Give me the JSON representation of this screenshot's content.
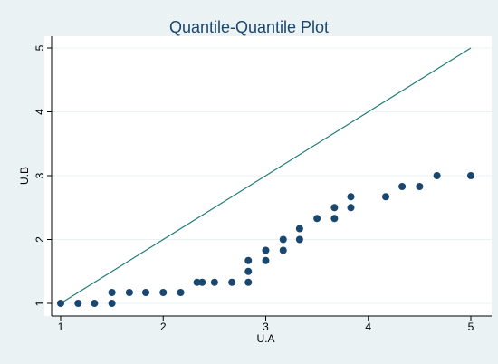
{
  "chart_data": {
    "type": "scatter",
    "title": "Quantile-Quantile Plot",
    "xlabel": "U.A",
    "ylabel": "U.B",
    "xlim": [
      1,
      5
    ],
    "ylim": [
      1,
      5
    ],
    "xticks": [
      "1",
      "2",
      "3",
      "4",
      "5"
    ],
    "yticks": [
      "1",
      "2",
      "3",
      "4",
      "5"
    ],
    "grid": "horizontal",
    "reference_line": {
      "from": [
        1,
        1
      ],
      "to": [
        5,
        5
      ],
      "color": "#1f7b7b"
    },
    "marker_color": "#1a476f",
    "points": [
      {
        "x": 1.0,
        "y": 1.0
      },
      {
        "x": 1.17,
        "y": 1.0
      },
      {
        "x": 1.33,
        "y": 1.0
      },
      {
        "x": 1.5,
        "y": 1.0
      },
      {
        "x": 1.5,
        "y": 1.17
      },
      {
        "x": 1.67,
        "y": 1.17
      },
      {
        "x": 1.83,
        "y": 1.17
      },
      {
        "x": 2.0,
        "y": 1.17
      },
      {
        "x": 2.17,
        "y": 1.17
      },
      {
        "x": 2.33,
        "y": 1.33
      },
      {
        "x": 2.38,
        "y": 1.33
      },
      {
        "x": 2.5,
        "y": 1.33
      },
      {
        "x": 2.67,
        "y": 1.33
      },
      {
        "x": 2.83,
        "y": 1.33
      },
      {
        "x": 2.83,
        "y": 1.5
      },
      {
        "x": 2.83,
        "y": 1.67
      },
      {
        "x": 3.0,
        "y": 1.67
      },
      {
        "x": 3.0,
        "y": 1.83
      },
      {
        "x": 3.17,
        "y": 1.83
      },
      {
        "x": 3.17,
        "y": 2.0
      },
      {
        "x": 3.33,
        "y": 2.0
      },
      {
        "x": 3.33,
        "y": 2.17
      },
      {
        "x": 3.5,
        "y": 2.33
      },
      {
        "x": 3.67,
        "y": 2.33
      },
      {
        "x": 3.67,
        "y": 2.5
      },
      {
        "x": 3.83,
        "y": 2.5
      },
      {
        "x": 3.83,
        "y": 2.67
      },
      {
        "x": 4.17,
        "y": 2.67
      },
      {
        "x": 4.33,
        "y": 2.83
      },
      {
        "x": 4.5,
        "y": 2.83
      },
      {
        "x": 4.67,
        "y": 3.0
      },
      {
        "x": 5.0,
        "y": 3.0
      }
    ]
  }
}
